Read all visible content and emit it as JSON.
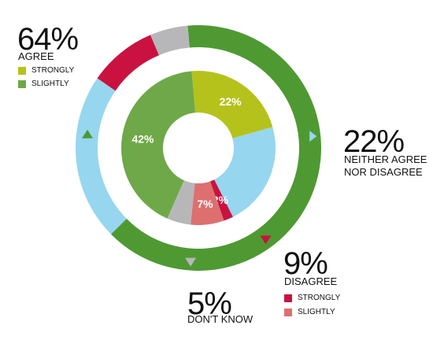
{
  "chart_data": {
    "type": "donut",
    "inner_ring": [
      {
        "name": "Strongly agree",
        "value": 22,
        "label": "22%",
        "color": "#b5c21b"
      },
      {
        "name": "Neither agree nor disagree",
        "value": 22,
        "label": "",
        "color": "#97d6ef"
      },
      {
        "name": "Strongly disagree",
        "value": 2,
        "label": "2%",
        "color": "#c9123f"
      },
      {
        "name": "Slightly disagree",
        "value": 7,
        "label": "7%",
        "color": "#dd6f6f"
      },
      {
        "name": "Don't know",
        "value": 5,
        "label": "",
        "color": "#b7b7b9"
      },
      {
        "name": "Slightly agree",
        "value": 42,
        "label": "42%",
        "color": "#6fa848"
      }
    ],
    "outer_ring": [
      {
        "name": "Agree",
        "value": 64,
        "color": "#4f9933"
      },
      {
        "name": "Neither agree nor disagree",
        "value": 22,
        "color": "#97d6ef"
      },
      {
        "name": "Disagree",
        "value": 9,
        "color": "#c9123f"
      },
      {
        "name": "Don't know",
        "value": 5,
        "color": "#b7b7b9"
      }
    ]
  },
  "annotations": {
    "agree": {
      "pct": "64%",
      "label": "AGREE",
      "legend": [
        {
          "label": "STRONGLY",
          "color": "#b5c21b"
        },
        {
          "label": "SLIGHTLY",
          "color": "#6fa848"
        }
      ]
    },
    "neither": {
      "pct": "22%",
      "line1": "NEITHER AGREE",
      "line2": "NOR DISAGREE"
    },
    "disagree": {
      "pct": "9%",
      "label": "DISAGREE",
      "legend": [
        {
          "label": "STRONGLY",
          "color": "#c9123f"
        },
        {
          "label": "SLIGHTLY",
          "color": "#dd6f6f"
        }
      ]
    },
    "dontknow": {
      "pct": "5%",
      "label": "DON'T KNOW"
    }
  }
}
